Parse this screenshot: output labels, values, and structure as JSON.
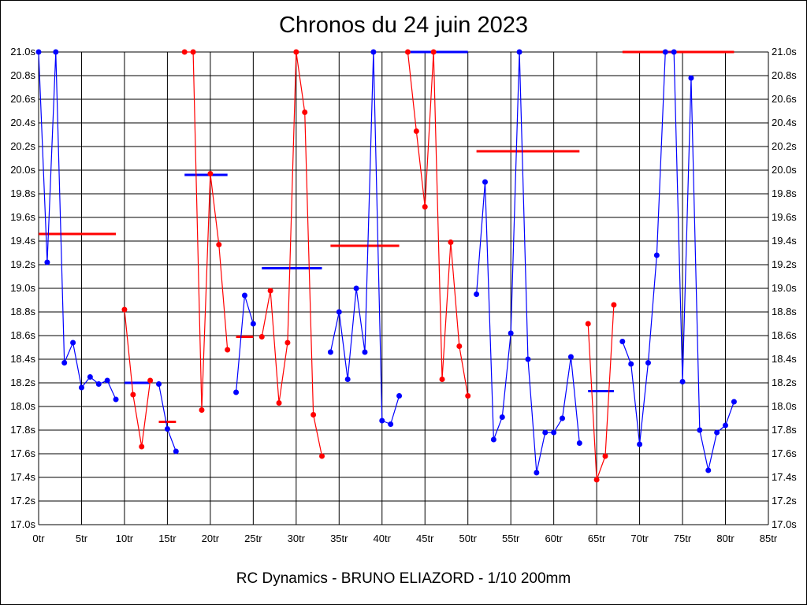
{
  "chart_data": {
    "type": "line",
    "title": "Chronos du 24 juin 2023",
    "footer": "RC Dynamics - BRUNO ELIAZORD - 1/10 200mm",
    "xlabel": "",
    "ylabel": "",
    "xlim": [
      0,
      85
    ],
    "ylim": [
      17.0,
      21.0
    ],
    "x_ticks": [
      0,
      5,
      10,
      15,
      20,
      25,
      30,
      35,
      40,
      45,
      50,
      55,
      60,
      65,
      70,
      75,
      80,
      85
    ],
    "x_tick_suffix": "tr",
    "y_ticks": [
      17.0,
      17.2,
      17.4,
      17.6,
      17.8,
      18.0,
      18.2,
      18.4,
      18.6,
      18.8,
      19.0,
      19.2,
      19.4,
      19.6,
      19.8,
      20.0,
      20.2,
      20.4,
      20.6,
      20.8,
      21.0
    ],
    "y_tick_suffix": "s",
    "grid": true,
    "colors": {
      "blue": "#0000ff",
      "red": "#ff0000"
    },
    "segments": [
      {
        "color": "blue",
        "x": [
          0,
          1,
          2,
          3,
          4,
          5,
          6,
          7,
          8,
          9
        ],
        "y": [
          21.0,
          19.22,
          21.0,
          18.37,
          18.54,
          18.16,
          18.25,
          18.19,
          18.22,
          18.06
        ],
        "avg": 19.46,
        "avg_color": "red"
      },
      {
        "color": "red",
        "x": [
          10,
          11,
          12,
          13
        ],
        "y": [
          18.82,
          18.1,
          17.66,
          18.22
        ],
        "avg": 18.2,
        "avg_color": "blue"
      },
      {
        "color": "blue",
        "x": [
          14,
          15,
          16
        ],
        "y": [
          18.19,
          17.81,
          17.62
        ],
        "avg": 17.87,
        "avg_color": "red"
      },
      {
        "color": "red",
        "x": [
          17,
          18,
          19,
          20,
          21,
          22
        ],
        "y": [
          21.0,
          21.0,
          17.97,
          19.97,
          19.37,
          18.48
        ],
        "avg": 19.96,
        "avg_color": "blue"
      },
      {
        "color": "blue",
        "x": [
          23,
          24,
          25
        ],
        "y": [
          18.12,
          18.94,
          18.7
        ],
        "avg": 18.59,
        "avg_color": "red"
      },
      {
        "color": "red",
        "x": [
          26,
          27,
          28,
          29,
          30,
          31,
          32,
          33
        ],
        "y": [
          18.59,
          18.98,
          18.03,
          18.54,
          21.0,
          20.49,
          17.93,
          17.58
        ],
        "avg": 19.17,
        "avg_color": "blue"
      },
      {
        "color": "blue",
        "x": [
          34,
          35,
          36,
          37,
          38,
          39,
          40,
          41,
          42
        ],
        "y": [
          18.46,
          18.8,
          18.23,
          19.0,
          18.46,
          21.0,
          17.88,
          17.85,
          18.09
        ],
        "avg": 19.36,
        "avg_color": "red"
      },
      {
        "color": "red",
        "x": [
          43,
          44,
          45,
          46,
          47,
          48,
          49,
          50
        ],
        "y": [
          21.0,
          20.33,
          19.69,
          21.0,
          18.23,
          19.39,
          18.51,
          18.09
        ],
        "avg": 21.0,
        "avg_color": "blue"
      },
      {
        "color": "blue",
        "x": [
          51,
          52,
          53,
          54,
          55,
          56,
          57,
          58,
          59,
          60,
          61,
          62,
          63
        ],
        "y": [
          18.95,
          19.9,
          17.72,
          17.91,
          18.62,
          21.0,
          18.4,
          17.44,
          17.78,
          17.78,
          17.9,
          18.42,
          17.69
        ],
        "avg": 20.16,
        "avg_color": "red"
      },
      {
        "color": "red",
        "x": [
          64,
          65,
          66,
          67
        ],
        "y": [
          18.7,
          17.38,
          17.58,
          18.86
        ],
        "avg": 18.13,
        "avg_color": "blue"
      },
      {
        "color": "blue",
        "x": [
          68,
          69,
          70,
          71,
          72,
          73,
          74,
          75,
          76,
          77,
          78,
          79,
          80,
          81
        ],
        "y": [
          18.55,
          18.36,
          17.68,
          18.37,
          19.28,
          21.0,
          21.0,
          18.21,
          20.78,
          17.8,
          17.46,
          17.78,
          17.84,
          18.04
        ],
        "avg": 21.0,
        "avg_color": "red"
      }
    ]
  }
}
